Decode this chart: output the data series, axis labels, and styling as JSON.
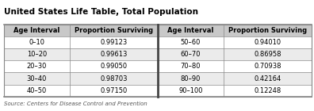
{
  "title": "United States Life Table, Total Population",
  "headers": [
    "Age Interval",
    "Proportion Surviving",
    "Age Interval",
    "Proportion Surviving"
  ],
  "left_data": [
    [
      "0–10",
      "0.99123"
    ],
    [
      "10–20",
      "0.99613"
    ],
    [
      "20–30",
      "0.99050"
    ],
    [
      "30–40",
      "0.98703"
    ],
    [
      "40–50",
      "0.97150"
    ]
  ],
  "right_data": [
    [
      "50–60",
      "0.94010"
    ],
    [
      "60–70",
      "0.86958"
    ],
    [
      "70–80",
      "0.70938"
    ],
    [
      "80–90",
      "0.42164"
    ],
    [
      "90–100",
      "0.12248"
    ]
  ],
  "source": "Source: Centers for Disease Control and Prevention",
  "header_bg": "#c8c8c8",
  "row_bg_alt": "#ebebeb",
  "row_bg_norm": "#ffffff",
  "border_color": "#888888",
  "mid_line_color": "#444444",
  "title_fontsize": 7.5,
  "header_fontsize": 6.0,
  "cell_fontsize": 6.0,
  "source_fontsize": 5.0
}
